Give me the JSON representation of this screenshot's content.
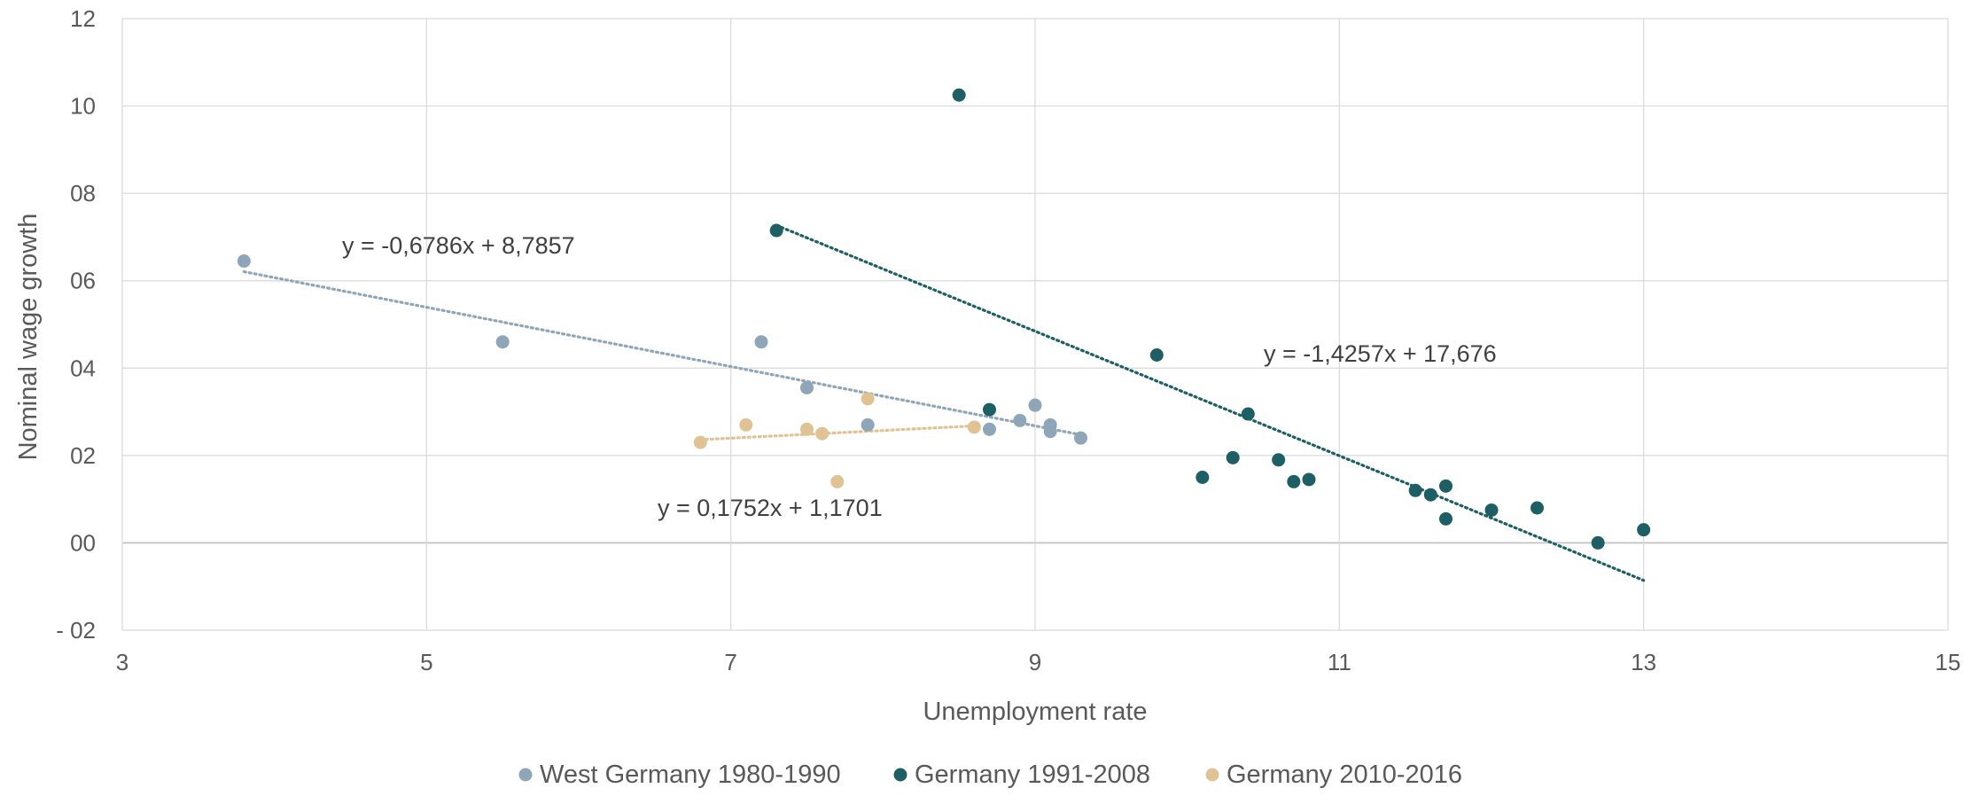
{
  "chart_data": {
    "type": "scatter",
    "xlabel": "Unemployment rate",
    "ylabel": "Nominal wage growth",
    "xlim": [
      3,
      15
    ],
    "ylim": [
      -2,
      12
    ],
    "x_ticks": [
      3,
      5,
      7,
      9,
      11,
      13,
      15
    ],
    "x_tick_labels": [
      "3",
      "5",
      "7",
      "9",
      "11",
      "13",
      "15"
    ],
    "y_ticks": [
      -2,
      0,
      2,
      4,
      6,
      8,
      10,
      12
    ],
    "y_tick_labels": [
      "- 02",
      "00",
      "02",
      "04",
      "06",
      "08",
      "10",
      "12"
    ],
    "grid": true,
    "legend_position": "bottom",
    "series": [
      {
        "name": "West Germany 1980-1990",
        "color": "#8fa5b8",
        "points": [
          [
            3.8,
            6.45
          ],
          [
            5.5,
            4.6
          ],
          [
            7.2,
            4.6
          ],
          [
            7.5,
            3.55
          ],
          [
            7.9,
            2.7
          ],
          [
            8.7,
            2.6
          ],
          [
            8.9,
            2.8
          ],
          [
            9.0,
            3.15
          ],
          [
            9.1,
            2.7
          ],
          [
            9.1,
            2.55
          ],
          [
            9.3,
            2.4
          ]
        ],
        "trendline": {
          "equation": "y = -0,6786x + 8,7857",
          "slope": -0.6786,
          "intercept": 8.7857,
          "x_range": [
            3.8,
            9.3
          ]
        }
      },
      {
        "name": "Germany 1991-2008",
        "color": "#1e5f65",
        "points": [
          [
            7.3,
            7.15
          ],
          [
            8.5,
            10.25
          ],
          [
            8.7,
            3.05
          ],
          [
            9.8,
            4.3
          ],
          [
            10.1,
            1.5
          ],
          [
            10.3,
            1.95
          ],
          [
            10.4,
            2.95
          ],
          [
            10.6,
            1.9
          ],
          [
            10.7,
            1.4
          ],
          [
            10.8,
            1.45
          ],
          [
            11.5,
            1.2
          ],
          [
            11.6,
            1.1
          ],
          [
            11.7,
            1.3
          ],
          [
            11.7,
            0.55
          ],
          [
            12.0,
            0.75
          ],
          [
            12.3,
            0.8
          ],
          [
            12.7,
            0.0
          ],
          [
            13.0,
            0.3
          ]
        ],
        "trendline": {
          "equation": "y = -1,4257x + 17,676",
          "slope": -1.4257,
          "intercept": 17.676,
          "x_range": [
            7.3,
            13.0
          ]
        }
      },
      {
        "name": "Germany 2010-2016",
        "color": "#dfc394",
        "points": [
          [
            6.8,
            2.3
          ],
          [
            7.1,
            2.7
          ],
          [
            7.5,
            2.6
          ],
          [
            7.6,
            2.5
          ],
          [
            7.7,
            1.4
          ],
          [
            7.9,
            3.3
          ],
          [
            8.6,
            2.65
          ]
        ],
        "trendline": {
          "equation": "y = 0,1752x + 1,1701",
          "slope": 0.1752,
          "intercept": 1.1701,
          "x_range": [
            6.8,
            8.6
          ]
        }
      }
    ]
  }
}
